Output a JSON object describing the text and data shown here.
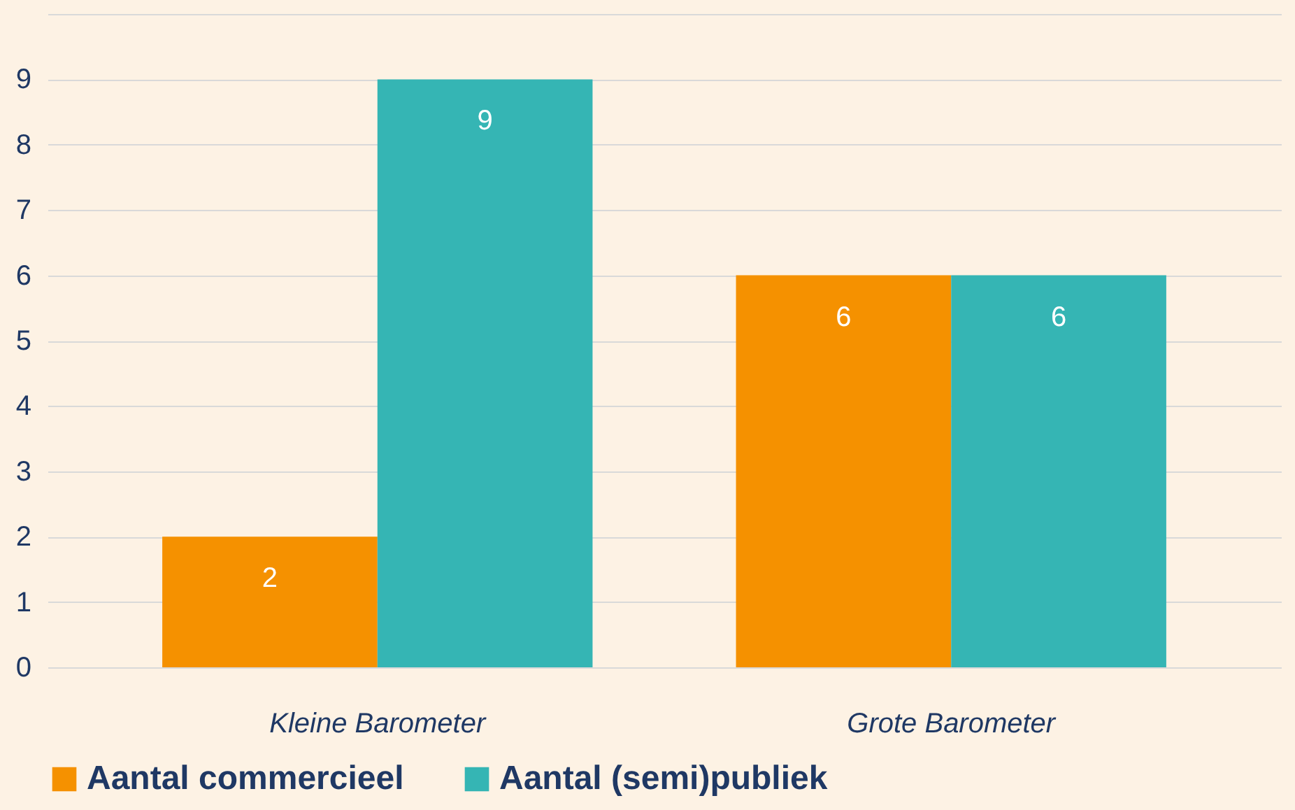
{
  "chart_data": {
    "type": "bar",
    "categories": [
      "Kleine Barometer",
      "Grote Barometer"
    ],
    "series": [
      {
        "name": "Aantal commercieel",
        "color": "#f59100",
        "values": [
          2,
          6
        ]
      },
      {
        "name": "Aantal (semi)publiek",
        "color": "#35b5b4",
        "values": [
          9,
          6
        ]
      }
    ],
    "ylim": [
      0,
      10
    ],
    "yticks": [
      0,
      1,
      2,
      3,
      4,
      5,
      6,
      7,
      8,
      9,
      {
        "value": 10,
        "label": null
      }
    ],
    "grid": "y",
    "legend": "bottom",
    "data_labels": true
  }
}
